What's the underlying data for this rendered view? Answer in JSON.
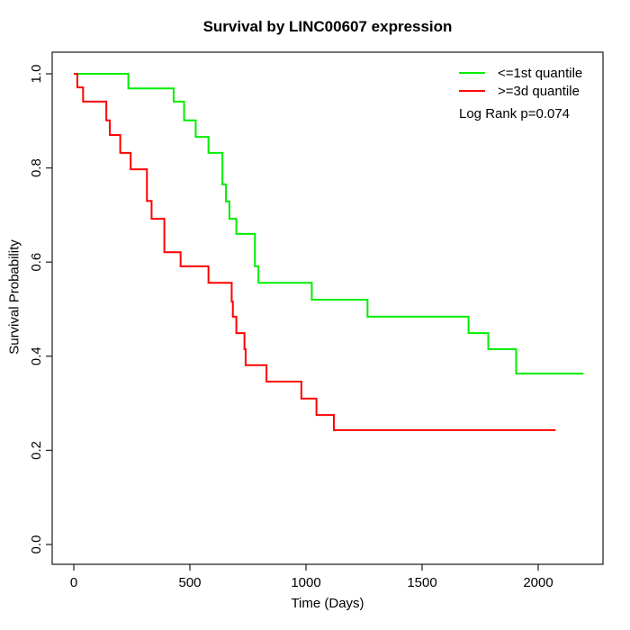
{
  "title": "Survival by LINC00607 expression",
  "stats": {
    "log_rank": "Log Rank p=0.074"
  },
  "legend": {
    "items": [
      {
        "label": "<=1st quantile",
        "color": "#00ee00"
      },
      {
        "label": ">=3d quantile",
        "color": "#ff0000"
      }
    ]
  },
  "chart_data": {
    "type": "line",
    "subtype": "kaplan-meier-step",
    "title": "Survival by LINC00607 expression",
    "xlabel": "Time (Days)",
    "ylabel": "Survival Probability",
    "xlim": [
      0,
      2280
    ],
    "ylim": [
      0,
      1
    ],
    "x_ticks": [
      0,
      500,
      1000,
      1500,
      2000
    ],
    "y_ticks": [
      0.0,
      0.2,
      0.4,
      0.6,
      0.8,
      1.0
    ],
    "grid": false,
    "legend_position": "top-right",
    "annotation": "Log Rank p=0.074",
    "series": [
      {
        "name": "<=1st quantile",
        "color": "#00ee00",
        "end_time": 2195,
        "points": [
          [
            0,
            1.0
          ],
          [
            235,
            0.969
          ],
          [
            430,
            0.941
          ],
          [
            475,
            0.901
          ],
          [
            525,
            0.866
          ],
          [
            580,
            0.832
          ],
          [
            640,
            0.765
          ],
          [
            655,
            0.729
          ],
          [
            670,
            0.692
          ],
          [
            700,
            0.66
          ],
          [
            780,
            0.591
          ],
          [
            795,
            0.556
          ],
          [
            1025,
            0.52
          ],
          [
            1265,
            0.484
          ],
          [
            1700,
            0.449
          ],
          [
            1785,
            0.415
          ],
          [
            1905,
            0.363
          ]
        ]
      },
      {
        "name": ">=3d quantile",
        "color": "#ff0000",
        "end_time": 2075,
        "points": [
          [
            0,
            1.0
          ],
          [
            15,
            0.971
          ],
          [
            40,
            0.941
          ],
          [
            140,
            0.901
          ],
          [
            155,
            0.87
          ],
          [
            200,
            0.832
          ],
          [
            245,
            0.797
          ],
          [
            315,
            0.73
          ],
          [
            335,
            0.692
          ],
          [
            390,
            0.621
          ],
          [
            460,
            0.591
          ],
          [
            580,
            0.556
          ],
          [
            680,
            0.516
          ],
          [
            685,
            0.484
          ],
          [
            700,
            0.449
          ],
          [
            735,
            0.415
          ],
          [
            740,
            0.381
          ],
          [
            830,
            0.346
          ],
          [
            980,
            0.31
          ],
          [
            1045,
            0.275
          ],
          [
            1120,
            0.243
          ]
        ]
      }
    ]
  }
}
